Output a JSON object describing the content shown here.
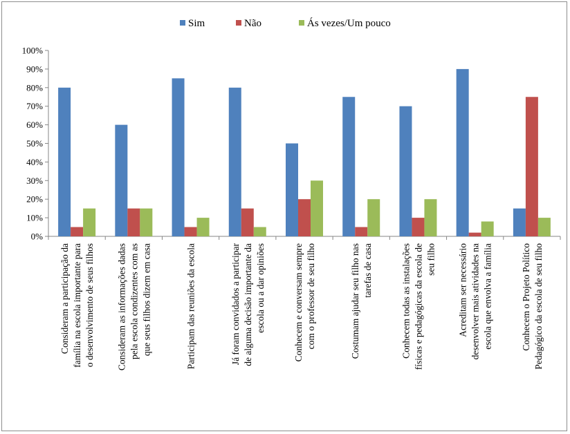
{
  "chart_data": {
    "type": "bar",
    "ylim": [
      0,
      100
    ],
    "yticks": [
      "0%",
      "10%",
      "20%",
      "30%",
      "40%",
      "50%",
      "60%",
      "70%",
      "80%",
      "90%",
      "100%"
    ],
    "legend_position": "top",
    "grid": false,
    "categories": [
      [
        "Consideram a participação da",
        "família na escola importante para",
        "o desenvolvimento de seus filhos"
      ],
      [
        "Consideram as informações dadas",
        "pela escola condizentes com as",
        "que seus filhos dizem em casa"
      ],
      [
        "Participam das reuniões da escola"
      ],
      [
        "Já foram convidados a participar",
        "de alguma decisão importante da",
        "escola ou a dar opiniões"
      ],
      [
        "Conhecem e conversam sempre",
        "com o professor de seu filho"
      ],
      [
        "Costumam ajudar seu filho nas",
        "tarefas de casa"
      ],
      [
        "Conhecem todas as instalações",
        "físicas e pedagógicas da escola de",
        "seu filho"
      ],
      [
        "Acreditam ser necessário",
        "desenvolver mais atividades na",
        "escola que envolva a família"
      ],
      [
        "Conhecem o Projeto Político",
        "Pedagógico da escola de seu filho"
      ]
    ],
    "series": [
      {
        "name": "Sim",
        "color": "#4f81bd",
        "values": [
          80,
          60,
          85,
          80,
          50,
          75,
          70,
          90,
          15
        ]
      },
      {
        "name": "Não",
        "color": "#c0504d",
        "values": [
          5,
          15,
          5,
          15,
          20,
          5,
          10,
          2,
          75
        ]
      },
      {
        "name": "Ás vezes/Um pouco",
        "color": "#9bbb59",
        "values": [
          15,
          15,
          10,
          5,
          30,
          20,
          20,
          8,
          10
        ]
      }
    ]
  }
}
